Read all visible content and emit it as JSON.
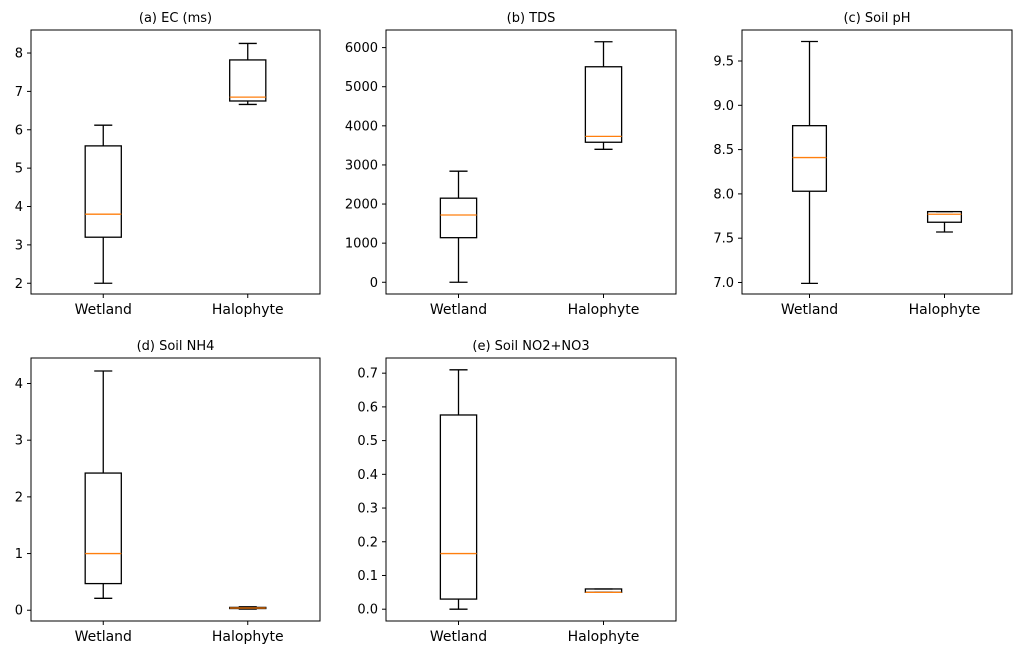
{
  "chart_data": [
    {
      "type": "box",
      "title": "(a) EC (ms)",
      "categories": [
        "Wetland",
        "Halophyte"
      ],
      "ylim": [
        1.72,
        8.6
      ],
      "yticks": [
        "2",
        "3",
        "4",
        "5",
        "6",
        "7",
        "8"
      ],
      "boxes": [
        {
          "whisker_low": 2.0,
          "q1": 3.2,
          "median": 3.8,
          "q3": 5.58,
          "whisker_high": 6.12
        },
        {
          "whisker_low": 6.66,
          "q1": 6.75,
          "median": 6.85,
          "q3": 7.82,
          "whisker_high": 8.25
        }
      ]
    },
    {
      "type": "box",
      "title": "(b) TDS",
      "categories": [
        "Wetland",
        "Halophyte"
      ],
      "ylim": [
        -300,
        6450
      ],
      "yticks": [
        "0",
        "1000",
        "2000",
        "3000",
        "4000",
        "5000",
        "6000"
      ],
      "boxes": [
        {
          "whisker_low": 0,
          "q1": 1140,
          "median": 1720,
          "q3": 2150,
          "whisker_high": 2840
        },
        {
          "whisker_low": 3400,
          "q1": 3580,
          "median": 3730,
          "q3": 5510,
          "whisker_high": 6150
        }
      ]
    },
    {
      "type": "box",
      "title": "(c) Soil pH",
      "categories": [
        "Wetland",
        "Halophyte"
      ],
      "ylim": [
        6.87,
        9.85
      ],
      "yticks": [
        "7.0",
        "7.5",
        "8.0",
        "8.5",
        "9.0",
        "9.5"
      ],
      "boxes": [
        {
          "whisker_low": 6.99,
          "q1": 8.03,
          "median": 8.41,
          "q3": 8.77,
          "whisker_high": 9.72
        },
        {
          "whisker_low": 7.57,
          "q1": 7.68,
          "median": 7.77,
          "q3": 7.8,
          "whisker_high": 7.8
        }
      ]
    },
    {
      "type": "box",
      "title": "(d) Soil NH4",
      "categories": [
        "Wetland",
        "Halophyte"
      ],
      "ylim": [
        -0.19,
        4.45
      ],
      "yticks": [
        "0",
        "1",
        "2",
        "3",
        "4"
      ],
      "boxes": [
        {
          "whisker_low": 0.21,
          "q1": 0.47,
          "median": 1.0,
          "q3": 2.42,
          "whisker_high": 4.22
        },
        {
          "whisker_low": 0.02,
          "q1": 0.03,
          "median": 0.04,
          "q3": 0.05,
          "whisker_high": 0.06
        }
      ]
    },
    {
      "type": "box",
      "title": "(e) Soil NO2+NO3",
      "categories": [
        "Wetland",
        "Halophyte"
      ],
      "ylim": [
        -0.035,
        0.745
      ],
      "yticks": [
        "0.0",
        "0.1",
        "0.2",
        "0.3",
        "0.4",
        "0.5",
        "0.6",
        "0.7"
      ],
      "boxes": [
        {
          "whisker_low": 0.0,
          "q1": 0.03,
          "median": 0.165,
          "q3": 0.576,
          "whisker_high": 0.71
        },
        {
          "whisker_low": 0.05,
          "q1": 0.05,
          "median": 0.05,
          "q3": 0.06,
          "whisker_high": 0.06
        }
      ]
    }
  ],
  "colors": {
    "median": "#ff7f0e",
    "box": "#000000",
    "background": "#ffffff"
  }
}
